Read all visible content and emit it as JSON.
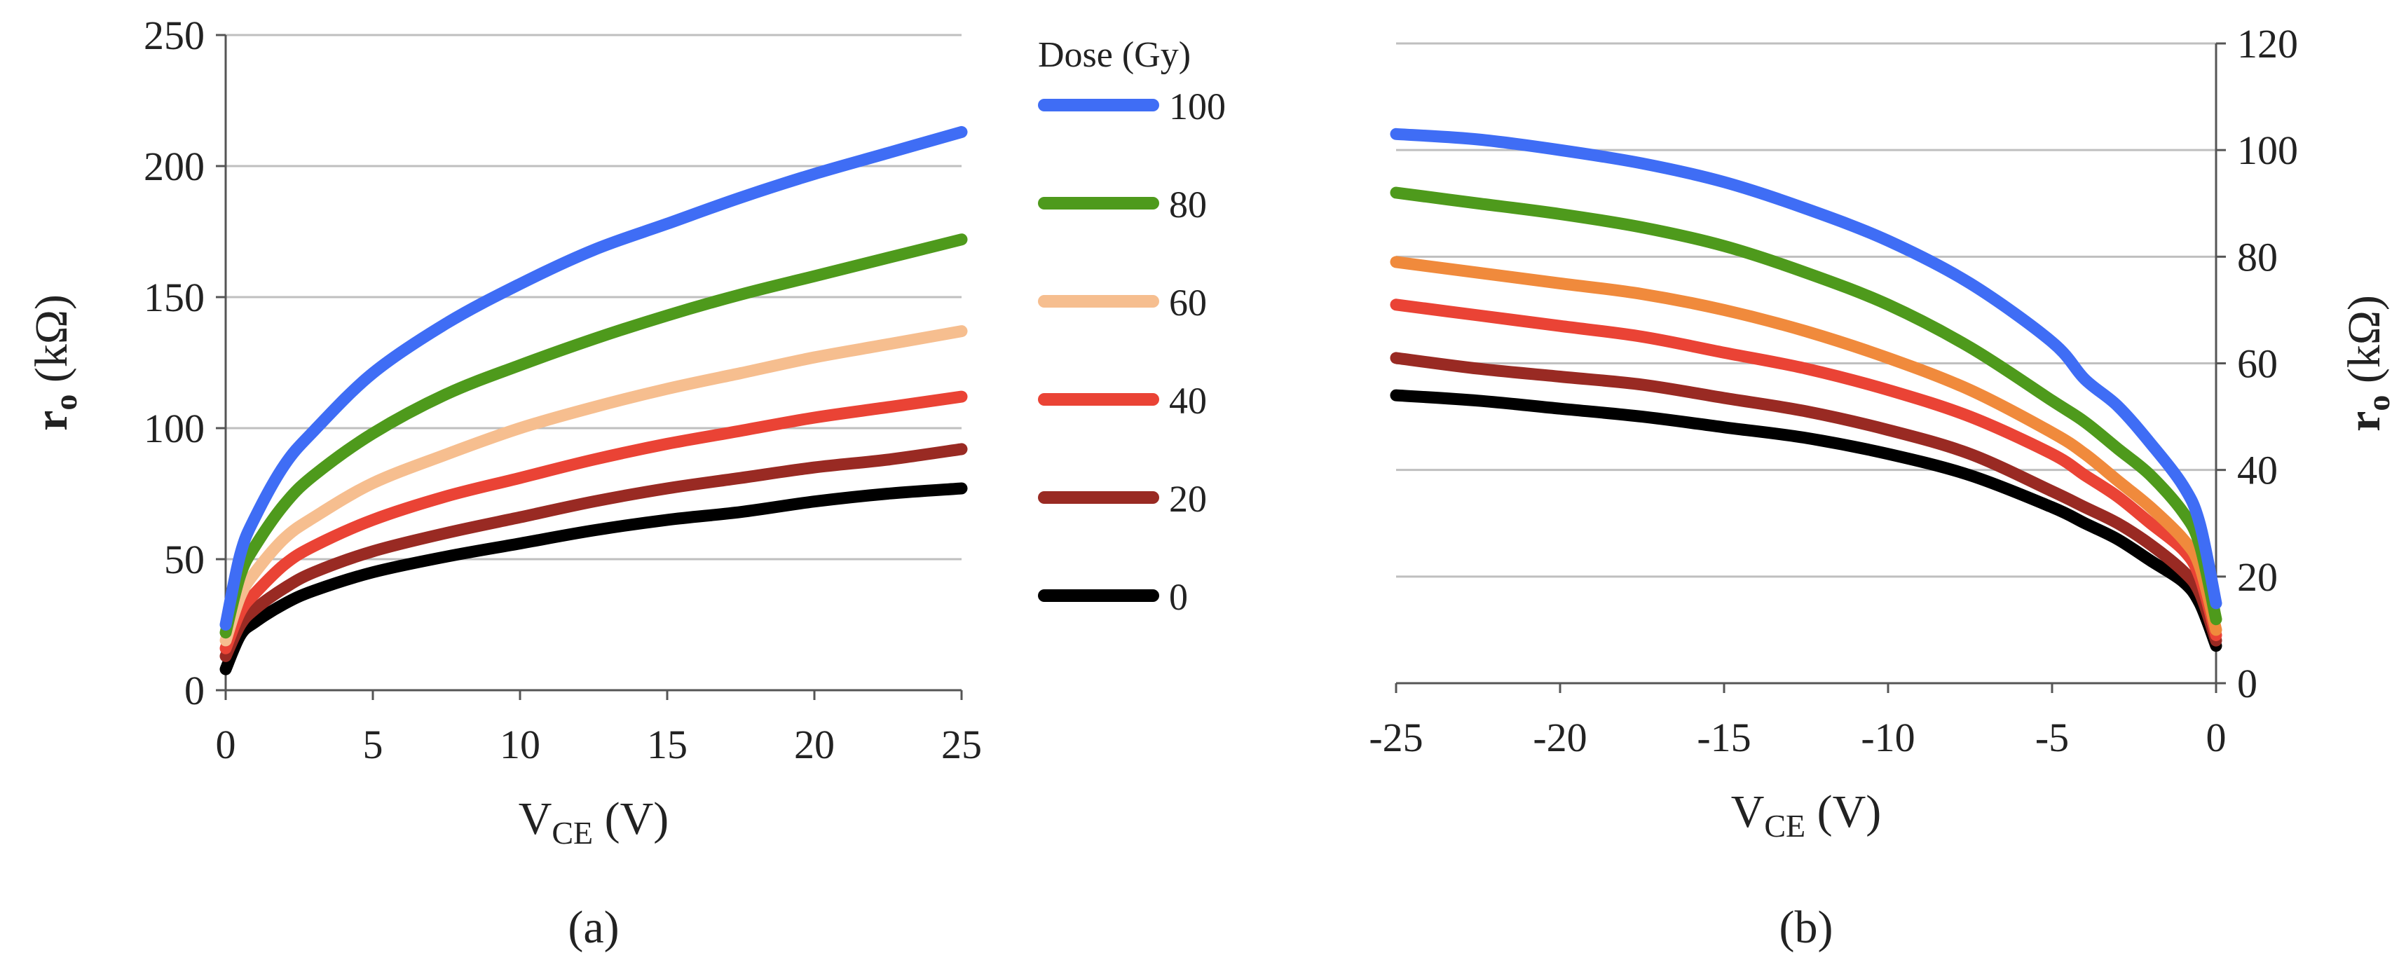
{
  "legend": {
    "title": "Dose (Gy)",
    "items": [
      {
        "label": "100",
        "color": "#3f6df5"
      },
      {
        "label": "80",
        "color": "#4e9a1c"
      },
      {
        "label": "60",
        "color": "#f6be8f"
      },
      {
        "label": "40",
        "color": "#ea4335"
      },
      {
        "label": "20",
        "color": "#992a23"
      },
      {
        "label": "0",
        "color": "#000000"
      }
    ]
  },
  "chart_data": [
    {
      "type": "line",
      "panel_label": "(a)",
      "xlabel": "V",
      "xlabel_sub": "CE",
      "xlabel_unit": " (V)",
      "ylabel": "r",
      "ylabel_sub": "o",
      "ylabel_unit": " (kΩ)",
      "xlim": [
        0,
        25
      ],
      "ylim": [
        0,
        250
      ],
      "x_ticks": [
        "0",
        "5",
        "10",
        "15",
        "20",
        "25"
      ],
      "y_ticks": [
        "0",
        "50",
        "100",
        "150",
        "200",
        "250"
      ],
      "grid": "horizontal",
      "x": [
        0,
        0.5,
        1,
        2,
        3,
        5,
        7.5,
        10,
        12.5,
        15,
        17.5,
        20,
        22.5,
        25
      ],
      "series": [
        {
          "name": "100",
          "color": "#3f6df5",
          "values": [
            25,
            52,
            66,
            86,
            99,
            121,
            140,
            155,
            168,
            178,
            188,
            197,
            205,
            213
          ]
        },
        {
          "name": "80",
          "color": "#4e9a1c",
          "values": [
            22,
            44,
            55,
            71,
            82,
            98,
            113,
            124,
            134,
            143,
            151,
            158,
            165,
            172
          ]
        },
        {
          "name": "60",
          "color": "#f6be8f",
          "values": [
            19,
            36,
            45,
            58,
            66,
            79,
            90,
            100,
            108,
            115,
            121,
            127,
            132,
            137
          ]
        },
        {
          "name": "40",
          "color": "#ea4335",
          "values": [
            16,
            30,
            37,
            48,
            55,
            65,
            74,
            81,
            88,
            94,
            99,
            104,
            108,
            112
          ]
        },
        {
          "name": "20",
          "color": "#992a23",
          "values": [
            13,
            25,
            31,
            39,
            45,
            53,
            60,
            66,
            72,
            77,
            81,
            85,
            88,
            92
          ]
        },
        {
          "name": "0",
          "color": "#000000",
          "values": [
            8,
            21,
            26,
            33,
            38,
            45,
            51,
            56,
            61,
            65,
            68,
            72,
            75,
            77
          ]
        }
      ]
    },
    {
      "type": "line",
      "panel_label": "(b)",
      "xlabel": "V",
      "xlabel_sub": "CE",
      "xlabel_unit": " (V)",
      "ylabel": "r",
      "ylabel_sub": "o",
      "ylabel_unit": " (kΩ)",
      "xlim": [
        -25,
        0
      ],
      "ylim": [
        0,
        120
      ],
      "x_ticks": [
        "-25",
        "-20",
        "-15",
        "-10",
        "-5",
        "0"
      ],
      "y_ticks": [
        "0",
        "20",
        "40",
        "60",
        "80",
        "100",
        "120"
      ],
      "grid": "horizontal",
      "y_axis_side": "right",
      "x": [
        -25,
        -22.5,
        -20,
        -17.5,
        -15,
        -12.5,
        -10,
        -7.5,
        -5,
        -4,
        -3,
        -2,
        -1,
        -0.5,
        0
      ],
      "series": [
        {
          "name": "100",
          "color": "#3f6df5",
          "values": [
            103,
            102,
            100,
            97.5,
            94,
            89,
            83,
            75,
            64,
            57,
            52,
            45,
            37,
            30,
            15
          ]
        },
        {
          "name": "80",
          "color": "#4e9a1c",
          "values": [
            92,
            90,
            88,
            85.5,
            82,
            77,
            71,
            63,
            53,
            49,
            44,
            39,
            32,
            26,
            12
          ]
        },
        {
          "name": "60",
          "color": "#f08a3c",
          "values": [
            79,
            77,
            75,
            73,
            70,
            66,
            61,
            55,
            47,
            43,
            38,
            33,
            27,
            22,
            10
          ]
        },
        {
          "name": "40",
          "color": "#ea4335",
          "values": [
            71,
            69,
            67,
            65,
            62,
            59,
            55,
            50,
            43,
            39,
            35,
            30,
            25,
            20,
            9
          ]
        },
        {
          "name": "20",
          "color": "#992a23",
          "values": [
            61,
            59,
            57.5,
            56,
            53.5,
            51,
            47.5,
            43,
            36,
            33,
            30,
            26,
            21,
            17,
            8
          ]
        },
        {
          "name": "0",
          "color": "#000000",
          "values": [
            54,
            53,
            51.5,
            50,
            48,
            46,
            43,
            39,
            33,
            30,
            27,
            23,
            19,
            15,
            7
          ]
        }
      ]
    }
  ]
}
